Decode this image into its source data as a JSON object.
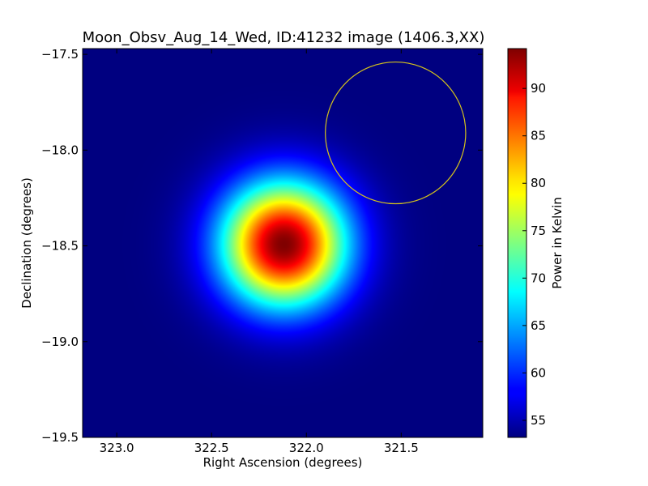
{
  "chart_data": {
    "type": "heatmap",
    "title": "Moon_Obsv_Aug_14_Wed, ID:41232 image (1406.3,XX)",
    "xlabel": "Right Ascension (degrees)",
    "ylabel": "Declination (degrees)",
    "x_ticks": [
      "323.0",
      "322.5",
      "322.0",
      "321.5"
    ],
    "y_ticks": [
      "−17.5",
      "−18.0",
      "−18.5",
      "−19.0",
      "−19.5"
    ],
    "xlim": [
      323.18,
      321.07
    ],
    "ylim": [
      -19.5,
      -17.47
    ],
    "x_inverted": true,
    "colormap": "jet",
    "colorbar": {
      "label": "Power in Kelvin",
      "ticks": [
        "55",
        "60",
        "65",
        "70",
        "75",
        "80",
        "85",
        "90"
      ],
      "range": [
        53.2,
        94.2
      ]
    },
    "peak": {
      "ra": 322.12,
      "dec": -18.49,
      "value": 94.2
    },
    "background_value": 53.2,
    "peak_width_deg": 0.46,
    "marker_circle": {
      "center_ra": 321.53,
      "center_dec": -17.91,
      "radius_deg": 0.37,
      "color": "#d4c21c"
    }
  }
}
